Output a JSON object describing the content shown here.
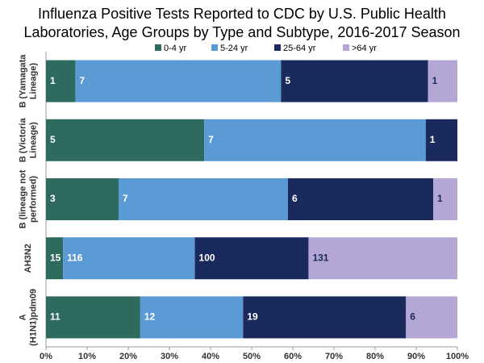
{
  "chart_data": {
    "type": "bar",
    "orientation": "horizontal",
    "stacked": true,
    "normalize": true,
    "title": [
      "Influenza Positive Tests Reported to CDC by U.S. Public Health",
      "Laboratories, Age Groups by Type and Subtype, 2016-2017 Season"
    ],
    "categories": [
      [
        "B (Yamagata",
        "Lineage)"
      ],
      [
        "B (Victoria",
        "Lineage)"
      ],
      [
        "B (lineage not",
        "performed)"
      ],
      [
        "AH3N2"
      ],
      [
        "A",
        "(H1N1)pdm09"
      ]
    ],
    "series": [
      {
        "name": "0-4 yr",
        "color": "#2e6b5e",
        "values": [
          1,
          5,
          3,
          15,
          11
        ]
      },
      {
        "name": "5-24 yr",
        "color": "#5b9bd5",
        "values": [
          7,
          7,
          7,
          116,
          12
        ]
      },
      {
        "name": "25-64 yr",
        "color": "#1b2a5c",
        "values": [
          5,
          1,
          6,
          100,
          19
        ]
      },
      {
        "name": ">64 yr",
        "color": "#b4a7d6",
        "values": [
          1,
          null,
          1,
          131,
          6
        ]
      }
    ],
    "xlim": [
      0,
      100
    ],
    "xticks": [
      {
        "value": 0,
        "label": "0%"
      },
      {
        "value": 10,
        "label": "10%"
      },
      {
        "value": 20,
        "label": "20%"
      },
      {
        "value": 30,
        "label": "30%"
      },
      {
        "value": 40,
        "label": "40%"
      },
      {
        "value": 50,
        "label": "50%"
      },
      {
        "value": 60,
        "label": "60%"
      },
      {
        "value": 70,
        "label": "70%"
      },
      {
        "value": 80,
        "label": "80%"
      },
      {
        "value": 90,
        "label": "90%"
      },
      {
        "value": 100,
        "label": "100%"
      }
    ],
    "legend": "top",
    "grid": false
  }
}
